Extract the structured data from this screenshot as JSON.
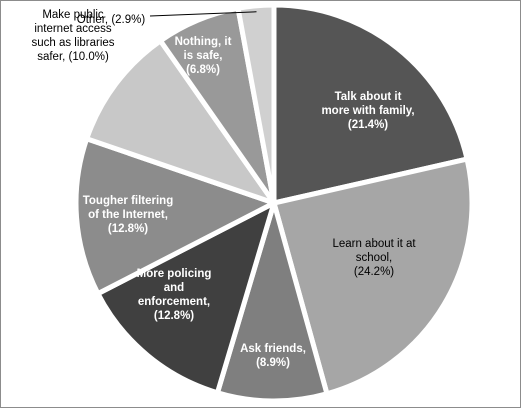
{
  "chart_data": {
    "type": "pie",
    "title": "",
    "start_angle_deg": 0,
    "direction": "clockwise",
    "slice_gap": "white",
    "slices": [
      {
        "key": "family",
        "label_lines": [
          "Talk about it",
          "more with family,",
          "(21.4%)"
        ],
        "value": 21.4,
        "color": "#555555",
        "text_color": "#ffffff"
      },
      {
        "key": "school",
        "label_lines": [
          "Learn about it at",
          "school,",
          "(24.2%)"
        ],
        "value": 24.2,
        "color": "#a6a6a6",
        "text_color": "#000000"
      },
      {
        "key": "friends",
        "label_lines": [
          "Ask friends,",
          "(8.9%)"
        ],
        "value": 8.9,
        "color": "#7f7f7f",
        "text_color": "#ffffff"
      },
      {
        "key": "policing",
        "label_lines": [
          "More policing",
          "and",
          "enforcement,",
          "(12.8%)"
        ],
        "value": 12.8,
        "color": "#404040",
        "text_color": "#ffffff"
      },
      {
        "key": "filtering",
        "label_lines": [
          "Tougher filtering",
          "of the Internet,",
          "(12.8%)"
        ],
        "value": 12.8,
        "color": "#8c8c8c",
        "text_color": "#ffffff"
      },
      {
        "key": "libraries",
        "label_lines": [
          "Make public",
          "internet access",
          "such as libraries",
          "safer, (10.0%)"
        ],
        "value": 10.0,
        "color": "#c8c8c8",
        "text_color": "#000000"
      },
      {
        "key": "nothing",
        "label_lines": [
          "Nothing, it",
          "is safe,",
          "(6.8%)"
        ],
        "value": 6.8,
        "color": "#999999",
        "text_color": "#ffffff"
      },
      {
        "key": "other",
        "label_lines": [
          "Other, (2.9%)"
        ],
        "value": 2.9,
        "color": "#d0d0d0",
        "text_color": "#000000"
      }
    ]
  }
}
